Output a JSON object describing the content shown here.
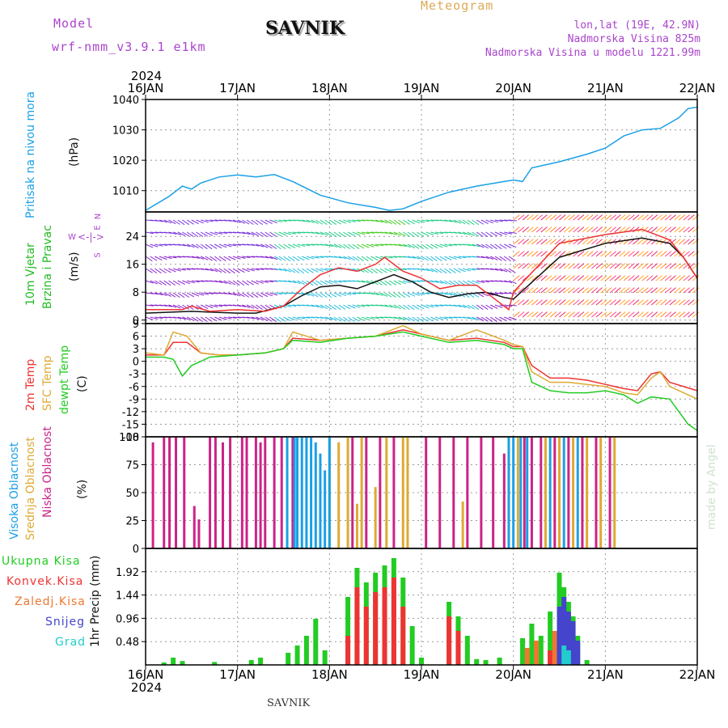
{
  "header": {
    "model_label": "Model",
    "model_name": "wrf-nmm_v3.9.1  e1km",
    "station": "SAVNIK",
    "meteogram_label": "Meteogram",
    "lonlat": "lon,lat (19E, 42.9N)",
    "altitude": "Nadmorska Visina 825m",
    "model_altitude": "Nadmorska Visina u modelu 1221.99m",
    "footer_station": "SAVNIK",
    "watermark": "made by Angel"
  },
  "colors": {
    "pressure": "#1aa0e6",
    "wind_label": "#22bb22",
    "wind_dir_label": "#aa44cc",
    "temp_2m": "#ee3333",
    "temp_sfc": "#ddaa33",
    "temp_dew": "#22cc22",
    "cloud_high": "#1aa0e6",
    "cloud_mid": "#ddaa33",
    "cloud_low": "#cc2288",
    "precip_total": "#22cc22",
    "precip_conv": "#ee3333",
    "precip_frozen": "#ee7733",
    "precip_snow": "#4444cc",
    "precip_hail": "#22cccc",
    "header_purple": "#aa44cc",
    "header_gold": "#ddaa55"
  },
  "chart_data": [
    {
      "type": "line",
      "panel": "pressure",
      "ylabel": "Pritisak na nivou mora",
      "unit": "(hPa)",
      "year_label": "2024",
      "x_ticks": [
        "16JAN",
        "17JAN",
        "18JAN",
        "19JAN",
        "20JAN",
        "21JAN",
        "22JAN"
      ],
      "y_ticks": [
        "1010",
        "1020",
        "1030",
        "1040"
      ],
      "ylim": [
        1003,
        1040
      ],
      "xlim": [
        0,
        6
      ],
      "grid": true,
      "series": [
        {
          "color": "pressure",
          "x": [
            0,
            0.25,
            0.4,
            0.5,
            0.6,
            0.8,
            1.0,
            1.2,
            1.4,
            1.6,
            1.9,
            2.2,
            2.5,
            2.65,
            2.8,
            3.0,
            3.3,
            3.6,
            3.9,
            4.0,
            4.1,
            4.2,
            4.5,
            4.8,
            5.0,
            5.2,
            5.4,
            5.6,
            5.8,
            5.9,
            6.0
          ],
          "values": [
            1003.5,
            1008,
            1011.5,
            1010.5,
            1012.5,
            1014.5,
            1015.2,
            1014.5,
            1015.3,
            1013,
            1008.5,
            1006,
            1004.5,
            1003.5,
            1004,
            1006.5,
            1009.5,
            1011.5,
            1013,
            1013.5,
            1013,
            1017.5,
            1019.5,
            1022,
            1024,
            1028,
            1030,
            1030.5,
            1034,
            1037,
            1037.5
          ]
        }
      ]
    },
    {
      "type": "line",
      "panel": "wind",
      "ylabel": "10m Vjetar",
      "ylabel2": "Brzina i Pravac",
      "unit": "(m/s)",
      "compass": [
        "N",
        "W",
        "E",
        "S"
      ],
      "y_ticks": [
        "0",
        "8",
        "16",
        "24"
      ],
      "ylim": [
        -1,
        31
      ],
      "xlim": [
        0,
        6
      ],
      "grid": true,
      "series": [
        {
          "name": "mean",
          "color": "#111111",
          "x": [
            0,
            0.5,
            1.0,
            1.2,
            1.5,
            1.7,
            1.9,
            2.1,
            2.3,
            2.5,
            2.7,
            2.9,
            3.1,
            3.3,
            3.5,
            3.7,
            3.9,
            4.0,
            4.5,
            5.0,
            5.4,
            5.7,
            5.85,
            6.0
          ],
          "values": [
            2,
            2.5,
            2,
            2,
            4,
            7,
            9.5,
            10,
            9,
            11,
            13,
            11,
            8,
            6.5,
            7.5,
            8,
            6.5,
            6,
            18,
            22,
            23.5,
            22,
            18,
            12
          ]
        },
        {
          "name": "gust",
          "color": "#ee3333",
          "x": [
            0,
            0.4,
            0.5,
            0.7,
            1.0,
            1.3,
            1.5,
            1.7,
            1.9,
            2.1,
            2.3,
            2.5,
            2.6,
            2.8,
            3.0,
            3.2,
            3.4,
            3.6,
            3.8,
            3.95,
            4.0,
            4.5,
            5.0,
            5.4,
            5.7,
            5.85,
            6.0
          ],
          "values": [
            3,
            3,
            4,
            2.5,
            3,
            2.5,
            4,
            9,
            13,
            15,
            14,
            16,
            18,
            14,
            12,
            9,
            10,
            10,
            6,
            3,
            8,
            22,
            24.5,
            26,
            23,
            18,
            12
          ]
        }
      ]
    },
    {
      "type": "line",
      "panel": "temperature",
      "ylabels": [
        "2m Temp",
        "SFC Temp",
        "dewpt Temp"
      ],
      "unit": "(C)",
      "y_ticks": [
        "9",
        "6",
        "3",
        "0",
        "-3",
        "-6",
        "-9",
        "-12",
        "-15",
        "-18"
      ],
      "ylim": [
        -18,
        9
      ],
      "xlim": [
        0,
        6
      ],
      "grid": true,
      "series": [
        {
          "name": "2m Temp",
          "color": "temp_2m",
          "x": [
            0,
            0.2,
            0.3,
            0.45,
            0.6,
            0.8,
            1.0,
            1.3,
            1.5,
            1.6,
            1.9,
            2.2,
            2.5,
            2.8,
            3.0,
            3.3,
            3.6,
            3.9,
            4.0,
            4.1,
            4.2,
            4.4,
            4.6,
            4.8,
            5.0,
            5.2,
            5.35,
            5.5,
            5.6,
            5.7,
            6.0
          ],
          "values": [
            1.5,
            1.5,
            4.5,
            4.5,
            2,
            1.5,
            1.5,
            2,
            3,
            5.5,
            5,
            5.5,
            6,
            7.5,
            6.5,
            5,
            5.5,
            4.5,
            3.5,
            3.5,
            -1,
            -4,
            -4,
            -4.5,
            -5.5,
            -6.5,
            -7,
            -3,
            -2.5,
            -5,
            -7
          ]
        },
        {
          "name": "SFC Temp",
          "color": "temp_sfc",
          "x": [
            0,
            0.2,
            0.3,
            0.45,
            0.6,
            0.8,
            1.0,
            1.3,
            1.5,
            1.6,
            1.9,
            2.2,
            2.5,
            2.8,
            3.0,
            3.3,
            3.6,
            3.9,
            4.0,
            4.1,
            4.2,
            4.4,
            4.6,
            4.8,
            5.0,
            5.2,
            5.35,
            5.5,
            5.6,
            5.7,
            6.0
          ],
          "values": [
            2,
            1.5,
            7,
            6,
            2,
            1.5,
            1.5,
            2,
            3,
            7,
            5,
            5.5,
            6,
            8.5,
            6.5,
            5,
            7.5,
            5,
            4,
            3.5,
            -2.5,
            -5,
            -5,
            -5.5,
            -6,
            -7.5,
            -8,
            -4,
            -2.5,
            -6,
            -9
          ]
        },
        {
          "name": "dewpt Temp",
          "color": "temp_dew",
          "x": [
            0,
            0.2,
            0.3,
            0.4,
            0.5,
            0.7,
            1.0,
            1.3,
            1.5,
            1.6,
            1.9,
            2.2,
            2.5,
            2.8,
            3.0,
            3.3,
            3.6,
            3.9,
            4.0,
            4.1,
            4.2,
            4.4,
            4.6,
            4.8,
            5.0,
            5.2,
            5.35,
            5.5,
            5.7,
            5.9,
            6.0
          ],
          "values": [
            1,
            1,
            0.5,
            -3.5,
            -1,
            1,
            1.5,
            2,
            3,
            5,
            4.5,
            5.5,
            6,
            7,
            6,
            4.5,
            5,
            4,
            3,
            3,
            -5,
            -7,
            -7.5,
            -7.5,
            -7,
            -8,
            -10,
            -8.5,
            -9,
            -15,
            -16.5
          ]
        }
      ]
    },
    {
      "type": "bar",
      "panel": "clouds",
      "ylabels": [
        "Visoka Oblacnost",
        "Srednja Oblacnost",
        "Niska Oblacnost"
      ],
      "unit": "(%)",
      "y_ticks": [
        "0",
        "25",
        "50",
        "75",
        "100"
      ],
      "ylim": [
        0,
        100
      ],
      "xlim": [
        0,
        6
      ],
      "grid": true,
      "series": [
        {
          "name": "Niska Oblacnost",
          "color": "cloud_low",
          "x": [
            0.08,
            0.2,
            0.26,
            0.33,
            0.42,
            0.53,
            0.58,
            0.7,
            0.76,
            0.84,
            0.92,
            1.05,
            1.1,
            1.2,
            1.25,
            1.3,
            1.4,
            1.48,
            1.6,
            2.25,
            2.4,
            2.55,
            2.7,
            3.05,
            3.2,
            3.35,
            3.5,
            3.65,
            3.78,
            3.9,
            4.12,
            4.2,
            4.3,
            4.45,
            4.6,
            4.75,
            4.9,
            5.05
          ],
          "values": [
            95,
            100,
            100,
            100,
            100,
            38,
            26,
            100,
            100,
            95,
            100,
            100,
            100,
            100,
            95,
            100,
            100,
            100,
            100,
            100,
            100,
            100,
            100,
            100,
            100,
            100,
            100,
            100,
            100,
            85,
            100,
            100,
            100,
            100,
            100,
            100,
            100,
            100
          ]
        },
        {
          "name": "Srednja Oblacnost",
          "color": "cloud_mid",
          "x": [
            2.0,
            2.1,
            2.2,
            2.3,
            2.35,
            2.5,
            2.62,
            2.8,
            2.85,
            3.45,
            4.05,
            4.35,
            4.5,
            4.65,
            4.8,
            4.95,
            5.1
          ],
          "values": [
            100,
            95,
            100,
            40,
            100,
            55,
            100,
            100,
            100,
            42,
            100,
            100,
            100,
            100,
            100,
            100,
            100
          ]
        },
        {
          "name": "Visoka Oblacnost",
          "color": "cloud_high",
          "x": [
            1.54,
            1.62,
            1.65,
            1.7,
            1.75,
            1.8,
            1.85,
            1.9,
            1.95,
            2.0,
            3.95,
            4.0,
            4.08,
            4.15,
            4.4,
            4.55,
            4.7
          ],
          "values": [
            100,
            100,
            100,
            100,
            100,
            100,
            95,
            85,
            70,
            100,
            100,
            100,
            100,
            100,
            100,
            100,
            100
          ]
        }
      ]
    },
    {
      "type": "bar",
      "panel": "precip",
      "ylabels": [
        "Ukupna Kisa",
        "Konvek.Kisa",
        "Zaledj.Kisa",
        "Snijeg",
        "Grad"
      ],
      "unit": "1hr Precip (mm)",
      "y_ticks": [
        "0.48",
        "0.96",
        "1.44",
        "1.92"
      ],
      "ylim": [
        0,
        2.4
      ],
      "xlim": [
        0,
        6
      ],
      "grid": true,
      "series": [
        {
          "name": "Ukupna Kisa",
          "color": "precip_total",
          "x": [
            0.2,
            0.3,
            0.4,
            0.75,
            1.15,
            1.25,
            1.55,
            1.65,
            1.75,
            1.85,
            1.95,
            2.2,
            2.3,
            2.4,
            2.5,
            2.6,
            2.7,
            2.8,
            2.9,
            3.0,
            3.3,
            3.4,
            3.5,
            3.6,
            3.7,
            3.85,
            4.1,
            4.2,
            4.3,
            4.4,
            4.5,
            4.55,
            4.6,
            4.65,
            4.7,
            4.8
          ],
          "values": [
            0.05,
            0.15,
            0.08,
            0.06,
            0.1,
            0.15,
            0.25,
            0.4,
            0.6,
            0.95,
            0.3,
            1.4,
            2.0,
            1.7,
            1.9,
            2.05,
            2.2,
            1.8,
            0.8,
            0.15,
            1.3,
            1.0,
            0.6,
            0.12,
            0.1,
            0.15,
            0.55,
            0.85,
            0.6,
            1.1,
            1.9,
            1.6,
            1.3,
            1.0,
            0.6,
            0.1
          ]
        },
        {
          "name": "Konvek.Kisa",
          "color": "precip_conv",
          "x": [
            2.2,
            2.3,
            2.4,
            2.5,
            2.6,
            2.7,
            2.8,
            3.3,
            3.4,
            4.4,
            4.5
          ],
          "values": [
            0.6,
            1.6,
            1.2,
            1.5,
            1.6,
            1.8,
            1.2,
            1.0,
            0.7,
            0.3,
            0.5
          ]
        },
        {
          "name": "Zaledj.Kisa",
          "color": "precip_frozen",
          "x": [
            4.15,
            4.25,
            4.45
          ],
          "values": [
            0.35,
            0.5,
            0.7
          ]
        },
        {
          "name": "Snijeg",
          "color": "precip_snow",
          "x": [
            4.5,
            4.55,
            4.6,
            4.65,
            4.7
          ],
          "values": [
            1.2,
            1.4,
            1.1,
            0.9,
            0.5
          ]
        },
        {
          "name": "Grad",
          "color": "precip_hail",
          "x": [
            4.55,
            4.6
          ],
          "values": [
            0.4,
            0.3
          ]
        }
      ]
    }
  ]
}
